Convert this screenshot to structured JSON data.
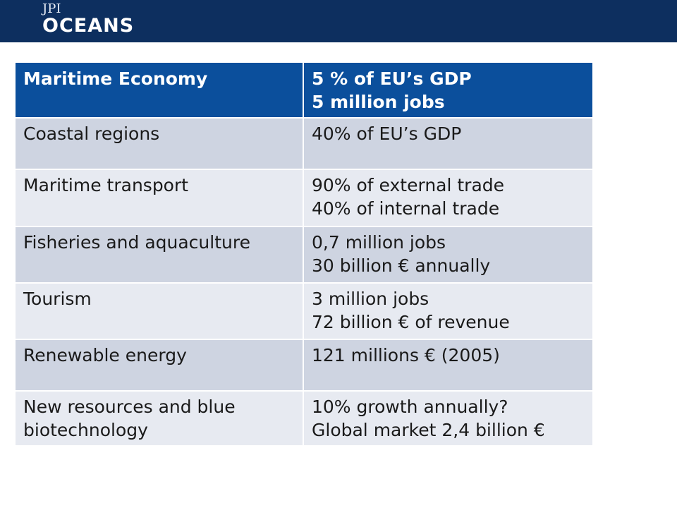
{
  "header": {
    "logo_line1": "JPI",
    "logo_line2": "OCEANS",
    "bar_color": "#0d2f5f"
  },
  "table": {
    "header_color": "#0b4f9c",
    "row_color_a": "#ced4e1",
    "row_color_b": "#e7eaf1",
    "columns": [
      {
        "lines": [
          "Maritime Economy"
        ]
      },
      {
        "lines": [
          "5 % of EU’s GDP",
          "5 million jobs"
        ]
      }
    ],
    "rows": [
      {
        "sector": [
          "Coastal regions"
        ],
        "figures": [
          "40% of EU’s GDP"
        ]
      },
      {
        "sector": [
          "Maritime transport"
        ],
        "figures": [
          "90% of external trade",
          "40% of internal trade"
        ]
      },
      {
        "sector": [
          "Fisheries and aquaculture"
        ],
        "figures": [
          "0,7 million jobs",
          "30 billion € annually"
        ]
      },
      {
        "sector": [
          "Tourism"
        ],
        "figures": [
          "3 million jobs",
          "72 billion € of revenue"
        ]
      },
      {
        "sector": [
          "Renewable energy"
        ],
        "figures": [
          "121 millions €  (2005)"
        ]
      },
      {
        "sector": [
          "New resources and blue",
          "biotechnology"
        ],
        "figures": [
          "10% growth annually?",
          "Global market 2,4 billion €"
        ]
      }
    ]
  }
}
